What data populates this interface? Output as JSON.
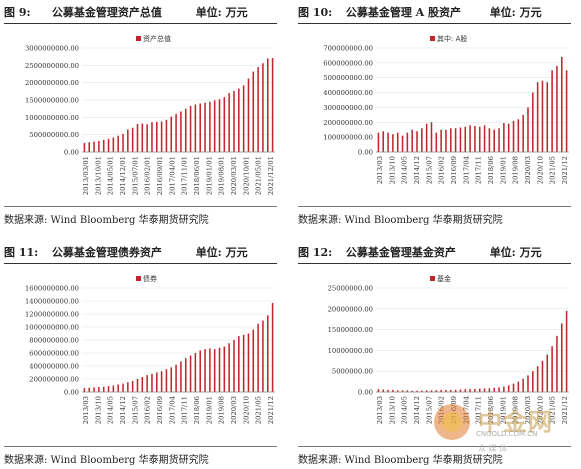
{
  "panels": [
    {
      "num": "图 9:",
      "name": "公募基金管理资产总值",
      "unit": "单位: 万元"
    },
    {
      "num": "图 10:",
      "name": "公募基金管理 A 股资产",
      "unit": "单位: 万元"
    },
    {
      "num": "图 11:",
      "name": "公募基金管理债券资产",
      "unit": "单位: 万元"
    },
    {
      "num": "图 12:",
      "name": "公募基金管理基金资产",
      "unit": "单位: 万元"
    }
  ],
  "source": "数据来源: Wind   Bloomberg  华泰期货研究院",
  "watermark": {
    "brand": "中金网",
    "sub": "CNGOLD.COM.CN",
    "foot": "众  媒  体"
  },
  "chart_data": [
    {
      "type": "bar",
      "legend": "资产总值",
      "color": "#c0272d",
      "ylim": [
        0,
        3000000000
      ],
      "yticks": [
        0,
        500000000,
        1000000000,
        1500000000,
        2000000000,
        2500000000,
        3000000000
      ],
      "ytick_labels": [
        "0.00",
        "500000000.00",
        "1000000000.00",
        "1500000000.00",
        "2000000000.00",
        "2500000000.00",
        "3000000000.00"
      ],
      "xtick_labels": [
        "2013/03/01",
        "2013/10/01",
        "2014/05/01",
        "2014/12/01",
        "2015/07/01",
        "2016/02/01",
        "2016/09/01",
        "2017/04/01",
        "2017/11/01",
        "2018/06/01",
        "2019/01/01",
        "2019/08/01",
        "2020/03/01",
        "2020/10/01",
        "2021/05/01",
        "2021/12/01"
      ],
      "values": [
        260000000,
        280000000,
        300000000,
        320000000,
        350000000,
        380000000,
        420000000,
        470000000,
        520000000,
        650000000,
        700000000,
        810000000,
        820000000,
        800000000,
        860000000,
        870000000,
        880000000,
        930000000,
        1020000000,
        1100000000,
        1170000000,
        1250000000,
        1330000000,
        1370000000,
        1400000000,
        1420000000,
        1450000000,
        1490000000,
        1520000000,
        1580000000,
        1700000000,
        1760000000,
        1830000000,
        1920000000,
        2120000000,
        2320000000,
        2450000000,
        2560000000,
        2700000000,
        2710000000
      ]
    },
    {
      "type": "bar",
      "legend": "其中: A股",
      "color": "#c0272d",
      "ylim": [
        0,
        700000000
      ],
      "yticks": [
        0,
        100000000,
        200000000,
        300000000,
        400000000,
        500000000,
        600000000,
        700000000
      ],
      "ytick_labels": [
        "0.00",
        "100000000.00",
        "200000000.00",
        "300000000.00",
        "400000000.00",
        "500000000.00",
        "600000000.00",
        "700000000.00"
      ],
      "xtick_labels": [
        "2013/03",
        "2013/10",
        "2014/05",
        "2014/12",
        "2015/07",
        "2016/02",
        "2016/09",
        "2017/04",
        "2017/11",
        "2018/06",
        "2019/01",
        "2019/08",
        "2020/03",
        "2020/10",
        "2021/05",
        "2021/12"
      ],
      "values": [
        130000000,
        140000000,
        130000000,
        120000000,
        130000000,
        110000000,
        130000000,
        150000000,
        140000000,
        160000000,
        190000000,
        200000000,
        130000000,
        150000000,
        150000000,
        160000000,
        160000000,
        165000000,
        170000000,
        180000000,
        175000000,
        170000000,
        180000000,
        160000000,
        150000000,
        160000000,
        195000000,
        190000000,
        210000000,
        220000000,
        250000000,
        300000000,
        400000000,
        470000000,
        480000000,
        470000000,
        550000000,
        580000000,
        640000000,
        550000000
      ]
    },
    {
      "type": "bar",
      "legend": "债券",
      "color": "#c0272d",
      "ylim": [
        0,
        1600000000
      ],
      "yticks": [
        0,
        200000000,
        400000000,
        600000000,
        800000000,
        1000000000,
        1200000000,
        1400000000,
        1600000000
      ],
      "ytick_labels": [
        "0.00",
        "200000000.00",
        "400000000.00",
        "600000000.00",
        "800000000.00",
        "1000000000.00",
        "1200000000.00",
        "1400000000.00",
        "1600000000.00"
      ],
      "xtick_labels": [
        "2013/03",
        "2013/10",
        "2014/05",
        "2014/12",
        "2015/07",
        "2016/02",
        "2016/09",
        "2017/04",
        "2017/11",
        "2018/06",
        "2019/01",
        "2019/08",
        "2020/03",
        "2020/10",
        "2021/05",
        "2021/12"
      ],
      "values": [
        60000000,
        65000000,
        70000000,
        75000000,
        80000000,
        90000000,
        100000000,
        115000000,
        130000000,
        150000000,
        170000000,
        200000000,
        230000000,
        260000000,
        280000000,
        300000000,
        320000000,
        350000000,
        380000000,
        420000000,
        470000000,
        520000000,
        560000000,
        600000000,
        640000000,
        660000000,
        670000000,
        660000000,
        680000000,
        700000000,
        750000000,
        800000000,
        860000000,
        880000000,
        900000000,
        960000000,
        1050000000,
        1100000000,
        1180000000,
        1370000000
      ]
    },
    {
      "type": "bar",
      "legend": "基金",
      "color": "#c0272d",
      "ylim": [
        0,
        25000000
      ],
      "yticks": [
        0,
        5000000,
        10000000,
        15000000,
        20000000,
        25000000
      ],
      "ytick_labels": [
        "0.00",
        "5000000.00",
        "10000000.00",
        "15000000.00",
        "20000000.00",
        "25000000.00"
      ],
      "xtick_labels": [
        "2013/03",
        "2013/10",
        "2014/05",
        "2014/12",
        "2015/07",
        "2016/02",
        "2016/09",
        "2017/04",
        "2017/11",
        "2018/06",
        "2019/01",
        "2019/08",
        "2020/03",
        "2020/10",
        "2021/05",
        "2021/12"
      ],
      "values": [
        700000,
        600000,
        500000,
        500000,
        400000,
        400000,
        400000,
        300000,
        300000,
        350000,
        400000,
        400000,
        450000,
        500000,
        500000,
        500000,
        550000,
        600000,
        650000,
        700000,
        750000,
        800000,
        850000,
        900000,
        1000000,
        1100000,
        1300000,
        1600000,
        2000000,
        2500000,
        3200000,
        4000000,
        5000000,
        6200000,
        7500000,
        9000000,
        11000000,
        13500000,
        16500000,
        19500000
      ]
    }
  ]
}
